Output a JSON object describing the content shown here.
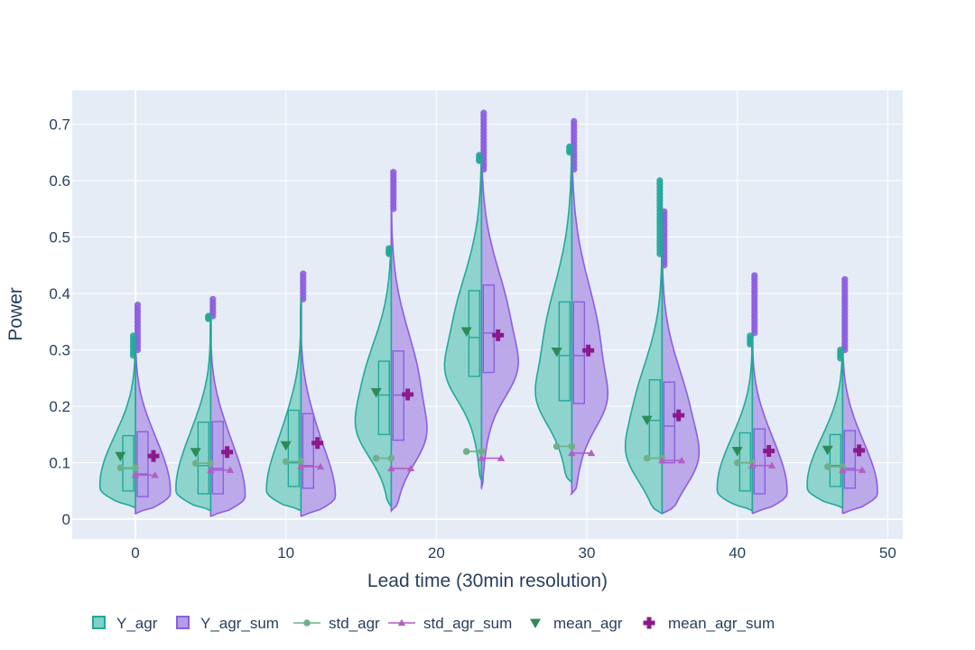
{
  "chart_data": {
    "type": "violin",
    "title": "",
    "xlabel": "Lead time (30min resolution)",
    "ylabel": "Power",
    "xlim": [
      -4.2,
      51
    ],
    "ylim": [
      -0.035,
      0.76
    ],
    "x_ticks": [
      0,
      10,
      20,
      30,
      40,
      50
    ],
    "y_ticks": [
      0,
      0.1,
      0.2,
      0.3,
      0.4,
      0.5,
      0.6,
      0.7
    ],
    "x_tick_labels": [
      "0",
      "10",
      "20",
      "30",
      "40",
      "50"
    ],
    "y_tick_labels": [
      "0",
      "0.1",
      "0.2",
      "0.3",
      "0.4",
      "0.5",
      "0.6",
      "0.7"
    ],
    "grid": true,
    "legend_position": "bottom",
    "categories": [
      0,
      5,
      11,
      17,
      23,
      29,
      35,
      41,
      47
    ],
    "series": [
      {
        "name": "Y_agr",
        "kind": "violin-left",
        "color": "#23a89a",
        "fill": "#7fd0c6",
        "groups": [
          {
            "x": 0,
            "min": 0.02,
            "q1": 0.05,
            "median": 0.09,
            "q3": 0.148,
            "upper_fence": 0.29,
            "max": 0.325
          },
          {
            "x": 5,
            "min": 0.015,
            "q1": 0.045,
            "median": 0.095,
            "q3": 0.172,
            "upper_fence": 0.355,
            "max": 0.36
          },
          {
            "x": 11,
            "min": 0.015,
            "q1": 0.058,
            "median": 0.1,
            "q3": 0.193,
            "upper_fence": 0.39,
            "max": 0.39
          },
          {
            "x": 17,
            "min": 0.022,
            "q1": 0.15,
            "median": 0.22,
            "q3": 0.28,
            "upper_fence": 0.47,
            "max": 0.48
          },
          {
            "x": 23,
            "min": 0.068,
            "q1": 0.253,
            "median": 0.322,
            "q3": 0.405,
            "upper_fence": 0.635,
            "max": 0.645
          },
          {
            "x": 29,
            "min": 0.065,
            "q1": 0.21,
            "median": 0.29,
            "q3": 0.385,
            "upper_fence": 0.65,
            "max": 0.66
          },
          {
            "x": 35,
            "min": 0.01,
            "q1": 0.108,
            "median": 0.175,
            "q3": 0.247,
            "upper_fence": 0.47,
            "max": 0.6
          },
          {
            "x": 41,
            "min": 0.015,
            "q1": 0.05,
            "median": 0.1,
            "q3": 0.153,
            "upper_fence": 0.31,
            "max": 0.325
          },
          {
            "x": 47,
            "min": 0.02,
            "q1": 0.058,
            "median": 0.095,
            "q3": 0.15,
            "upper_fence": 0.285,
            "max": 0.3
          }
        ]
      },
      {
        "name": "Y_agr_sum",
        "kind": "violin-right",
        "color": "#8c5ee0",
        "fill": "#b49de8",
        "groups": [
          {
            "x": 0,
            "min": 0.01,
            "q1": 0.04,
            "median": 0.08,
            "q3": 0.155,
            "upper_fence": 0.3,
            "max": 0.38
          },
          {
            "x": 5,
            "min": 0.005,
            "q1": 0.045,
            "median": 0.09,
            "q3": 0.173,
            "upper_fence": 0.36,
            "max": 0.39
          },
          {
            "x": 11,
            "min": 0.005,
            "q1": 0.055,
            "median": 0.095,
            "q3": 0.187,
            "upper_fence": 0.39,
            "max": 0.435
          },
          {
            "x": 17,
            "min": 0.015,
            "q1": 0.14,
            "median": 0.22,
            "q3": 0.298,
            "upper_fence": 0.55,
            "max": 0.615
          },
          {
            "x": 23,
            "min": 0.055,
            "q1": 0.26,
            "median": 0.33,
            "q3": 0.415,
            "upper_fence": 0.62,
            "max": 0.72
          },
          {
            "x": 29,
            "min": 0.045,
            "q1": 0.205,
            "median": 0.29,
            "q3": 0.385,
            "upper_fence": 0.62,
            "max": 0.705
          },
          {
            "x": 35,
            "min": 0.01,
            "q1": 0.1,
            "median": 0.165,
            "q3": 0.243,
            "upper_fence": 0.45,
            "max": 0.545
          },
          {
            "x": 41,
            "min": 0.01,
            "q1": 0.045,
            "median": 0.095,
            "q3": 0.16,
            "upper_fence": 0.33,
            "max": 0.432
          },
          {
            "x": 47,
            "min": 0.01,
            "q1": 0.055,
            "median": 0.09,
            "q3": 0.157,
            "upper_fence": 0.3,
            "max": 0.425
          }
        ]
      },
      {
        "name": "std_agr",
        "kind": "line-markers",
        "marker": "circle",
        "color": "#6fb08c",
        "points": [
          {
            "x": -1,
            "y": 0.091
          },
          {
            "x": 0,
            "y": 0.091
          },
          {
            "x": 4,
            "y": 0.099
          },
          {
            "x": 5,
            "y": 0.099
          },
          {
            "x": 10,
            "y": 0.102
          },
          {
            "x": 11,
            "y": 0.102
          },
          {
            "x": 16,
            "y": 0.108
          },
          {
            "x": 17,
            "y": 0.108
          },
          {
            "x": 22,
            "y": 0.12
          },
          {
            "x": 23,
            "y": 0.12
          },
          {
            "x": 28,
            "y": 0.129
          },
          {
            "x": 29,
            "y": 0.129
          },
          {
            "x": 34,
            "y": 0.108
          },
          {
            "x": 35,
            "y": 0.108
          },
          {
            "x": 40,
            "y": 0.1
          },
          {
            "x": 41,
            "y": 0.1
          },
          {
            "x": 46,
            "y": 0.093
          },
          {
            "x": 47,
            "y": 0.093
          }
        ]
      },
      {
        "name": "std_agr_sum",
        "kind": "line-markers",
        "marker": "triangle-up",
        "color": "#b25fc4",
        "points": [
          {
            "x": 0,
            "y": 0.078
          },
          {
            "x": 1.3,
            "y": 0.078
          },
          {
            "x": 5,
            "y": 0.087
          },
          {
            "x": 6.3,
            "y": 0.087
          },
          {
            "x": 11,
            "y": 0.093
          },
          {
            "x": 12.3,
            "y": 0.093
          },
          {
            "x": 17,
            "y": 0.09
          },
          {
            "x": 18.3,
            "y": 0.09
          },
          {
            "x": 23,
            "y": 0.108
          },
          {
            "x": 24.3,
            "y": 0.108
          },
          {
            "x": 29,
            "y": 0.117
          },
          {
            "x": 30.3,
            "y": 0.117
          },
          {
            "x": 35,
            "y": 0.104
          },
          {
            "x": 36.3,
            "y": 0.104
          },
          {
            "x": 41,
            "y": 0.095
          },
          {
            "x": 42.3,
            "y": 0.095
          },
          {
            "x": 47,
            "y": 0.087
          },
          {
            "x": 48.3,
            "y": 0.087
          }
        ]
      },
      {
        "name": "mean_agr",
        "kind": "markers",
        "marker": "triangle-down",
        "color": "#2e8b57",
        "points": [
          {
            "x": -1,
            "y": 0.112
          },
          {
            "x": 4,
            "y": 0.119
          },
          {
            "x": 10,
            "y": 0.131
          },
          {
            "x": 16,
            "y": 0.225
          },
          {
            "x": 22,
            "y": 0.333
          },
          {
            "x": 28,
            "y": 0.297
          },
          {
            "x": 34,
            "y": 0.176
          },
          {
            "x": 40,
            "y": 0.121
          },
          {
            "x": 46,
            "y": 0.123
          }
        ]
      },
      {
        "name": "mean_agr_sum",
        "kind": "markers",
        "marker": "cross",
        "color": "#8b1a8b",
        "points": [
          {
            "x": 1.2,
            "y": 0.112
          },
          {
            "x": 6.1,
            "y": 0.119
          },
          {
            "x": 12.1,
            "y": 0.135
          },
          {
            "x": 18.1,
            "y": 0.221
          },
          {
            "x": 24.1,
            "y": 0.326
          },
          {
            "x": 30.1,
            "y": 0.299
          },
          {
            "x": 36.1,
            "y": 0.184
          },
          {
            "x": 42.1,
            "y": 0.121
          },
          {
            "x": 48.1,
            "y": 0.122
          }
        ]
      }
    ]
  }
}
